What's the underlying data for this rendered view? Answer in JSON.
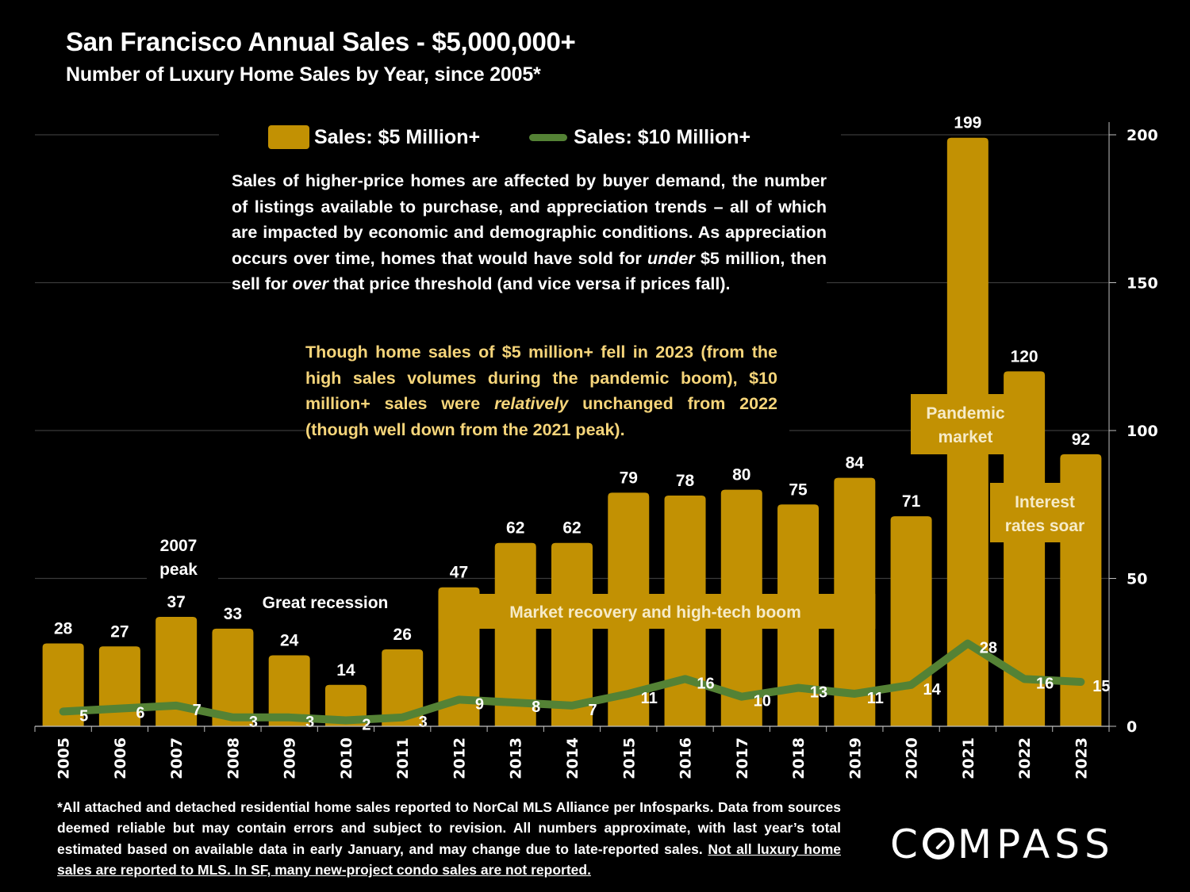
{
  "header": {
    "title": "San Francisco Annual Sales - $5,000,000+",
    "subtitle": "Number of Luxury Home Sales by Year, since 2005*"
  },
  "legend": {
    "bar_label": "Sales:  $5 Million+",
    "line_label": "Sales: $10 Million+"
  },
  "notes": {
    "main_parts": [
      {
        "text": "Sales of higher-price homes are affected by buyer demand, the number of listings available to purchase, and appreciation trends – all of which are impacted by economic and demographic conditions. As appreciation occurs over time, homes that would have sold for ",
        "italic": false
      },
      {
        "text": "under",
        "italic": true
      },
      {
        "text": " $5 million, then sell for ",
        "italic": false
      },
      {
        "text": "over",
        "italic": true
      },
      {
        "text": " that price threshold (and vice versa if prices fall).",
        "italic": false
      }
    ],
    "highlight_parts": [
      {
        "text": "Though home sales of $5 million+ fell in 2023 (from the high sales volumes during the pandemic boom), $10 million+ sales were ",
        "italic": false
      },
      {
        "text": "relatively",
        "italic": true
      },
      {
        "text": " unchanged from 2022 (though well down from the 2021 peak).",
        "italic": false
      }
    ]
  },
  "annotations": {
    "peak_2007": "2007\npeak",
    "great_recession": "Great recession",
    "recovery": "Market recovery and high-tech boom",
    "pandemic": "Pandemic\nmarket",
    "interest_rates": "Interest\nrates soar"
  },
  "footnote": {
    "text": "*All attached and detached residential home sales reported to NorCal MLS Alliance per Infosparks. Data from sources deemed reliable but may contain errors and subject to revision. All numbers approximate, with last year’s total estimated based on available data in early January, and may change due to late-reported sales. ",
    "underlined": "Not all luxury home sales are reported to MLS. In SF, many new-project condo sales are not reported."
  },
  "logo": {
    "pre": "C",
    "post": "MPASS"
  },
  "colors": {
    "bar": "#C29103",
    "line": "#548235",
    "highlight_text": "#F6D57A",
    "background": "#000000",
    "gridline": "#3a3a3a"
  },
  "chart_data": {
    "type": "bar",
    "title": "San Francisco Annual Sales - $5,000,000+",
    "subtitle": "Number of Luxury Home Sales by Year, since 2005*",
    "categories": [
      "2005",
      "2006",
      "2007",
      "2008",
      "2009",
      "2010",
      "2011",
      "2012",
      "2013",
      "2014",
      "2015",
      "2016",
      "2017",
      "2018",
      "2019",
      "2020",
      "2021",
      "2022",
      "2023"
    ],
    "series": [
      {
        "name": "Sales:  $5 Million+",
        "type": "bar",
        "values": [
          28,
          27,
          37,
          33,
          24,
          14,
          26,
          47,
          62,
          62,
          79,
          78,
          80,
          75,
          84,
          71,
          199,
          120,
          92
        ]
      },
      {
        "name": "Sales: $10 Million+",
        "type": "line",
        "values": [
          5,
          6,
          7,
          3,
          3,
          2,
          3,
          9,
          8,
          7,
          11,
          16,
          10,
          13,
          11,
          14,
          28,
          16,
          15
        ]
      }
    ],
    "xlabel": "",
    "ylabel": "",
    "ylim": [
      0,
      200
    ],
    "yticks": [
      0,
      50,
      100,
      150,
      200
    ],
    "y_axis_side": "right",
    "grid": true,
    "legend_position": "top"
  }
}
